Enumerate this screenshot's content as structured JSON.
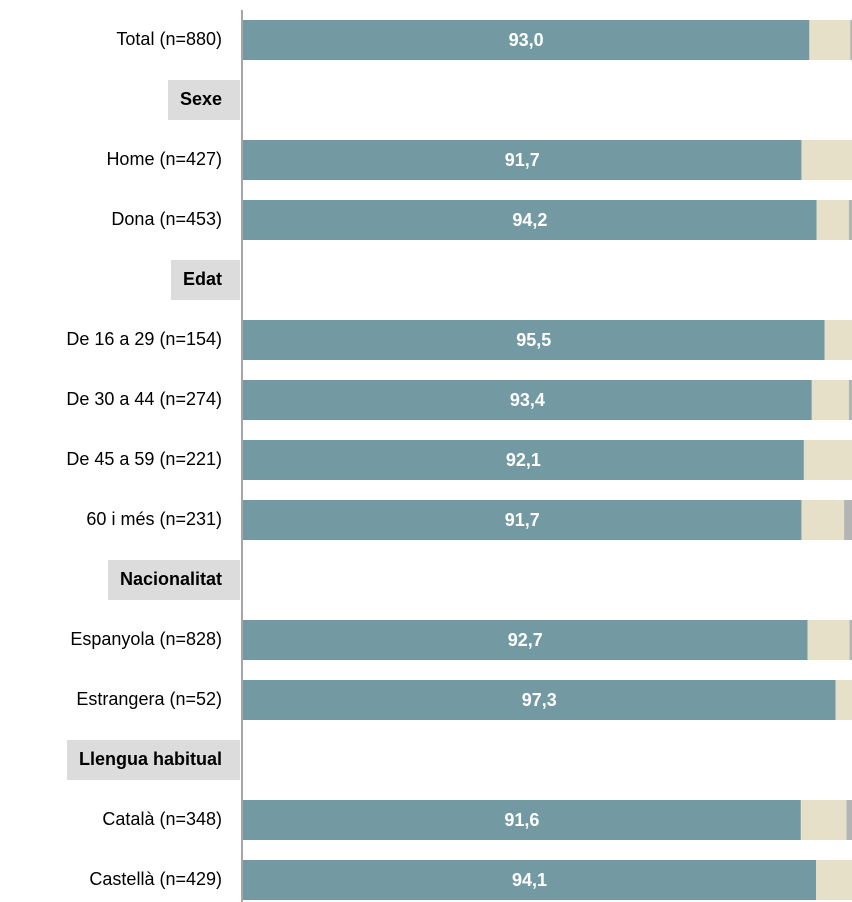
{
  "chart_data": {
    "type": "stacked-bar-horizontal",
    "categories": [
      "Total (n=880)",
      "Sexe",
      "Home (n=427)",
      "Dona (n=453)",
      "Edat",
      "De 16 a 29 (n=154)",
      "De 30 a 44 (n=274)",
      "De 45 a 59 (n=221)",
      "60 i més (n=231)",
      "Nacionalitat",
      "Espanyola (n=828)",
      "Estrangera (n=52)",
      "Llengua habitual",
      "Català (n=348)",
      "Castellà (n=429)"
    ],
    "xlim": [
      0,
      100
    ],
    "series": [
      {
        "color": "#7399a3",
        "values": [
          93.0,
          null,
          91.7,
          94.2,
          null,
          95.5,
          93.4,
          92.1,
          91.7,
          null,
          92.7,
          97.3,
          null,
          91.6,
          94.1
        ],
        "value_labels": [
          "93,0",
          null,
          "91,7",
          "94,2",
          null,
          "95,5",
          "93,4",
          "92,1",
          "91,7",
          null,
          "92,7",
          "97,3",
          null,
          "91,6",
          "94,1"
        ]
      },
      {
        "color": "#e6e0c8",
        "values": [
          6.7,
          null,
          8.3,
          5.3,
          null,
          4.5,
          6.1,
          7.9,
          7.0,
          null,
          6.9,
          2.7,
          null,
          7.5,
          5.9
        ]
      },
      {
        "color": "#b4b4b4",
        "values": [
          0.3,
          null,
          0,
          0.5,
          null,
          0,
          0.5,
          0,
          1.3,
          null,
          0.4,
          0,
          null,
          0.9,
          0
        ]
      }
    ]
  }
}
